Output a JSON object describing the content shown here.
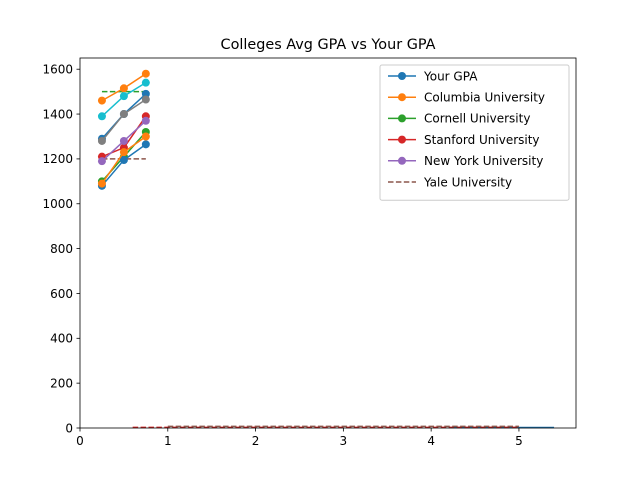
{
  "chart_data": {
    "type": "line",
    "title": "Colleges Avg GPA vs Your GPA",
    "xlabel": "",
    "ylabel": "",
    "xlim": [
      0,
      5.65
    ],
    "ylim": [
      0,
      1650
    ],
    "xticks": [
      0,
      1,
      2,
      3,
      4,
      5
    ],
    "yticks": [
      0,
      200,
      400,
      600,
      800,
      1000,
      1200,
      1400,
      1600
    ],
    "grid": false,
    "legend_position": "top-right",
    "legend": [
      {
        "label": "Your GPA",
        "color": "#1f77b4",
        "style": "solid-marker"
      },
      {
        "label": "Columbia University",
        "color": "#ff7f0e",
        "style": "solid-marker"
      },
      {
        "label": "Cornell University",
        "color": "#2ca02c",
        "style": "solid-marker"
      },
      {
        "label": "Stanford University",
        "color": "#d62728",
        "style": "solid-marker"
      },
      {
        "label": "New York University",
        "color": "#9467bd",
        "style": "solid-marker"
      },
      {
        "label": "Yale University",
        "color": "#8c564b",
        "style": "dashed"
      }
    ],
    "marker_series": [
      {
        "color": "#1f77b4",
        "x": [
          0.25,
          0.5,
          0.75
        ],
        "y": [
          1290,
          1400,
          1490
        ]
      },
      {
        "color": "#ff7f0e",
        "x": [
          0.25,
          0.5,
          0.75
        ],
        "y": [
          1460,
          1515,
          1580
        ]
      },
      {
        "color": "#2ca02c",
        "x": [
          0.25,
          0.5,
          0.75
        ],
        "y": [
          1100,
          1210,
          1320
        ]
      },
      {
        "color": "#d62728",
        "x": [
          0.25,
          0.5,
          0.75
        ],
        "y": [
          1210,
          1250,
          1390
        ]
      },
      {
        "color": "#9467bd",
        "x": [
          0.25,
          0.5,
          0.75
        ],
        "y": [
          1190,
          1280,
          1370
        ]
      },
      {
        "color": "#7f7f7f",
        "x": [
          0.25,
          0.5,
          0.75
        ],
        "y": [
          1280,
          1400,
          1465
        ]
      },
      {
        "color": "#17becf",
        "x": [
          0.25,
          0.5,
          0.75
        ],
        "y": [
          1390,
          1480,
          1540
        ]
      },
      {
        "color": "#1f77b4",
        "x": [
          0.25,
          0.5,
          0.75
        ],
        "y": [
          1080,
          1195,
          1265
        ]
      },
      {
        "color": "#ff7f0e",
        "x": [
          0.25,
          0.5,
          0.75
        ],
        "y": [
          1090,
          1230,
          1300
        ]
      }
    ],
    "dashed_series": [
      {
        "color": "#2ca02c",
        "x": [
          0.25,
          0.75
        ],
        "y": [
          1500,
          1500
        ]
      },
      {
        "color": "#8c564b",
        "x": [
          0.25,
          0.75
        ],
        "y": [
          1200,
          1200
        ]
      },
      {
        "color": "#d62728",
        "x": [
          0.6,
          5.0
        ],
        "y": [
          3,
          3
        ]
      },
      {
        "color": "#8c564b",
        "x": [
          1.0,
          5.0
        ],
        "y": [
          7,
          7
        ]
      }
    ],
    "solid_series": [
      {
        "color": "#1f77b4",
        "x": [
          4.2,
          5.4
        ],
        "y": [
          2,
          2
        ]
      }
    ]
  }
}
